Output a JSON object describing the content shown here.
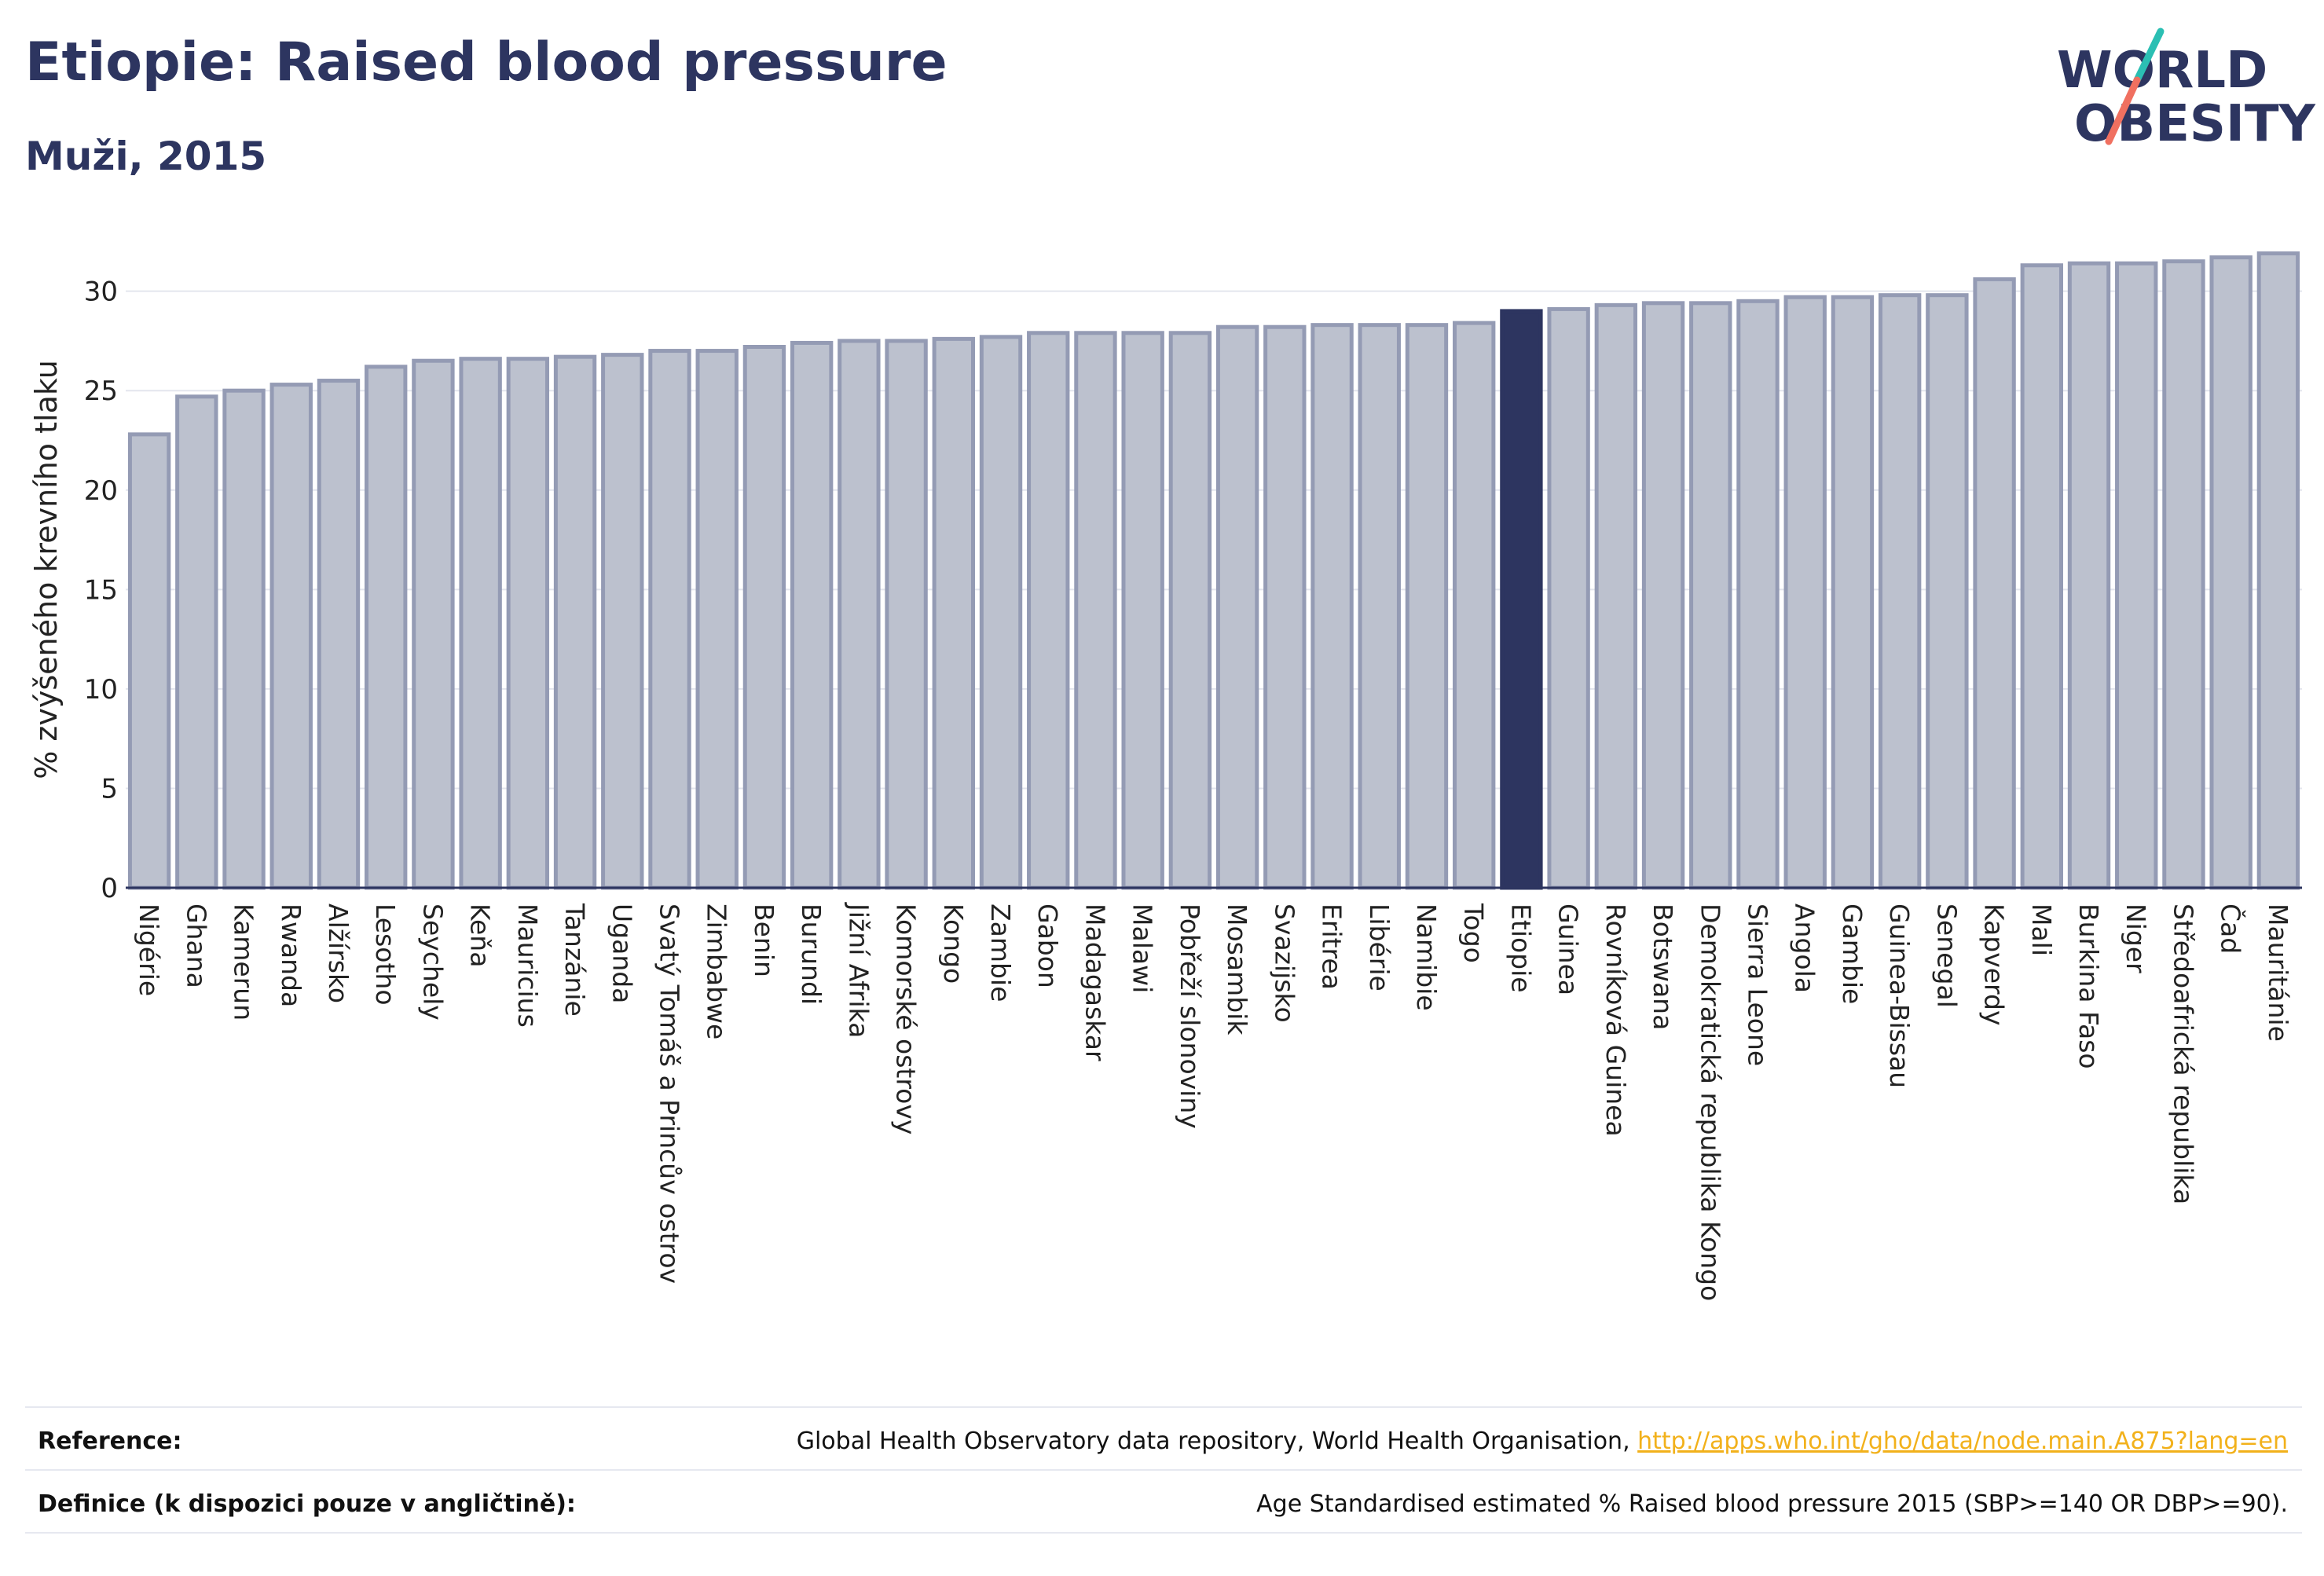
{
  "header": {
    "title": "Etiopie: Raised blood pressure",
    "subtitle": "Muži, 2015"
  },
  "logo": {
    "line1": "WORLD",
    "line2": "OBESITY",
    "colors": {
      "text": "#2d3560",
      "slash_teal": "#2bbfb3",
      "slash_coral": "#f07060"
    }
  },
  "chart_data": {
    "type": "bar",
    "title": "",
    "xlabel": "",
    "ylabel": "% zvýšeného krevního tlaku",
    "ylim": [
      0,
      32
    ],
    "yticks": [
      0,
      5,
      10,
      15,
      20,
      25,
      30
    ],
    "grid": true,
    "highlight_category": "Etiopie",
    "colors": {
      "bar": "#bcc1ce",
      "bar_edge": "#949bb4",
      "highlight": "#2d3560"
    },
    "categories": [
      "Nigérie",
      "Ghana",
      "Kamerun",
      "Rwanda",
      "Alžírsko",
      "Lesotho",
      "Seychely",
      "Keňa",
      "Mauricius",
      "Tanzánie",
      "Uganda",
      "Svatý Tomáš a Princův ostrov",
      "Zimbabwe",
      "Benin",
      "Burundi",
      "Jižní Afrika",
      "Komorské ostrovy",
      "Kongo",
      "Zambie",
      "Gabon",
      "Madagaskar",
      "Malawi",
      "Pobřeží slonoviny",
      "Mosambik",
      "Svazijsko",
      "Eritrea",
      "Libérie",
      "Namibie",
      "Togo",
      "Etiopie",
      "Guinea",
      "Rovníková Guinea",
      "Botswana",
      "Demokratická republika Kongo",
      "Sierra Leone",
      "Angola",
      "Gambie",
      "Guinea-Bissau",
      "Senegal",
      "Kapverdy",
      "Mali",
      "Burkina Faso",
      "Niger",
      "Středoafrická republika",
      "Čad",
      "Mauritánie"
    ],
    "values": [
      22.8,
      24.7,
      25.0,
      25.3,
      25.5,
      26.2,
      26.5,
      26.6,
      26.6,
      26.7,
      26.8,
      27.0,
      27.0,
      27.2,
      27.4,
      27.5,
      27.5,
      27.6,
      27.7,
      27.9,
      27.9,
      27.9,
      27.9,
      28.2,
      28.2,
      28.3,
      28.3,
      28.3,
      28.4,
      29.0,
      29.1,
      29.3,
      29.4,
      29.4,
      29.5,
      29.7,
      29.7,
      29.8,
      29.8,
      30.6,
      31.3,
      31.4,
      31.4,
      31.5,
      31.7,
      31.9
    ]
  },
  "footer": {
    "reference_label": "Reference:",
    "reference_text": "Global Health Observatory data repository, World Health Organisation, ",
    "reference_link": "http://apps.who.int/gho/data/node.main.A875?lang=en",
    "definition_label": "Definice (k dispozici pouze v angličtině):",
    "definition_text": "Age Standardised estimated % Raised blood pressure 2015 (SBP>=140 OR DBP>=90)."
  }
}
